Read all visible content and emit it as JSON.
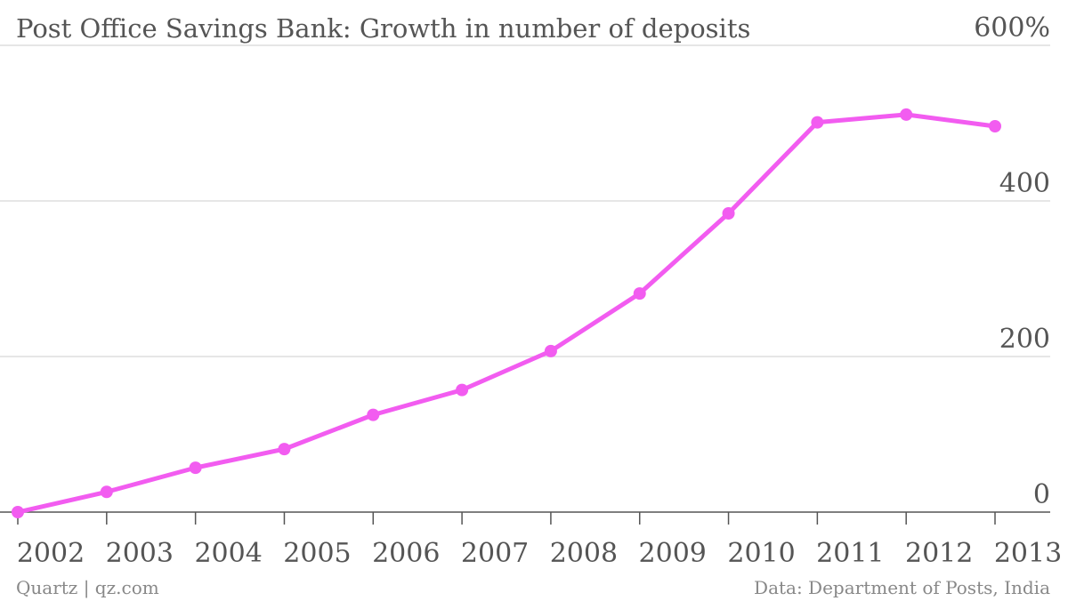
{
  "chart_data": {
    "type": "line",
    "title": "Post Office Savings Bank: Growth in number of deposits",
    "categories": [
      "2002",
      "2003",
      "2004",
      "2005",
      "2006",
      "2007",
      "2008",
      "2009",
      "2010",
      "2011",
      "2012",
      "2013"
    ],
    "series": [
      {
        "name": "Growth in number of deposits",
        "color": "#f25cf0",
        "values": [
          0,
          26,
          57,
          81,
          125,
          157,
          207,
          281,
          384,
          501,
          511,
          496
        ]
      }
    ],
    "ylim": [
      0,
      600
    ],
    "yticks": [
      0,
      200,
      400,
      {
        "value": 600,
        "label": "600%"
      }
    ],
    "grid": true,
    "credit": "Quartz | qz.com",
    "source": "Data: Department of Posts, India"
  }
}
